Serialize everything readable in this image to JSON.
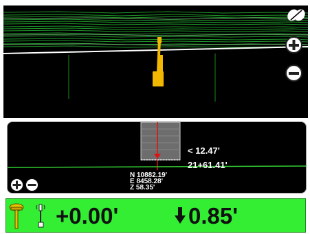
{
  "colors": {
    "status_bar": "#33ee33",
    "design_line": "#33cc33",
    "machine": "#f2b700",
    "guide_line": "#e01010"
  },
  "plan_view": {
    "compass_icon": "compass-icon",
    "zoom_in_icon": "plus-icon",
    "zoom_out_icon": "minus-icon"
  },
  "profile_view": {
    "offset": "< 12.47'",
    "station": "21+61.41'",
    "northing": "N 10882.19'",
    "easting": "E 8458.28'",
    "elevation": "Z 58.35'"
  },
  "status_bar": {
    "cut_fill": "+0.00'",
    "vertical_guidance": "0.85'",
    "vertical_arrow_icon": "arrow-down-icon",
    "gps_antenna_icon": "gps-antenna-icon",
    "rover_pole_icon": "rover-pole-icon"
  }
}
